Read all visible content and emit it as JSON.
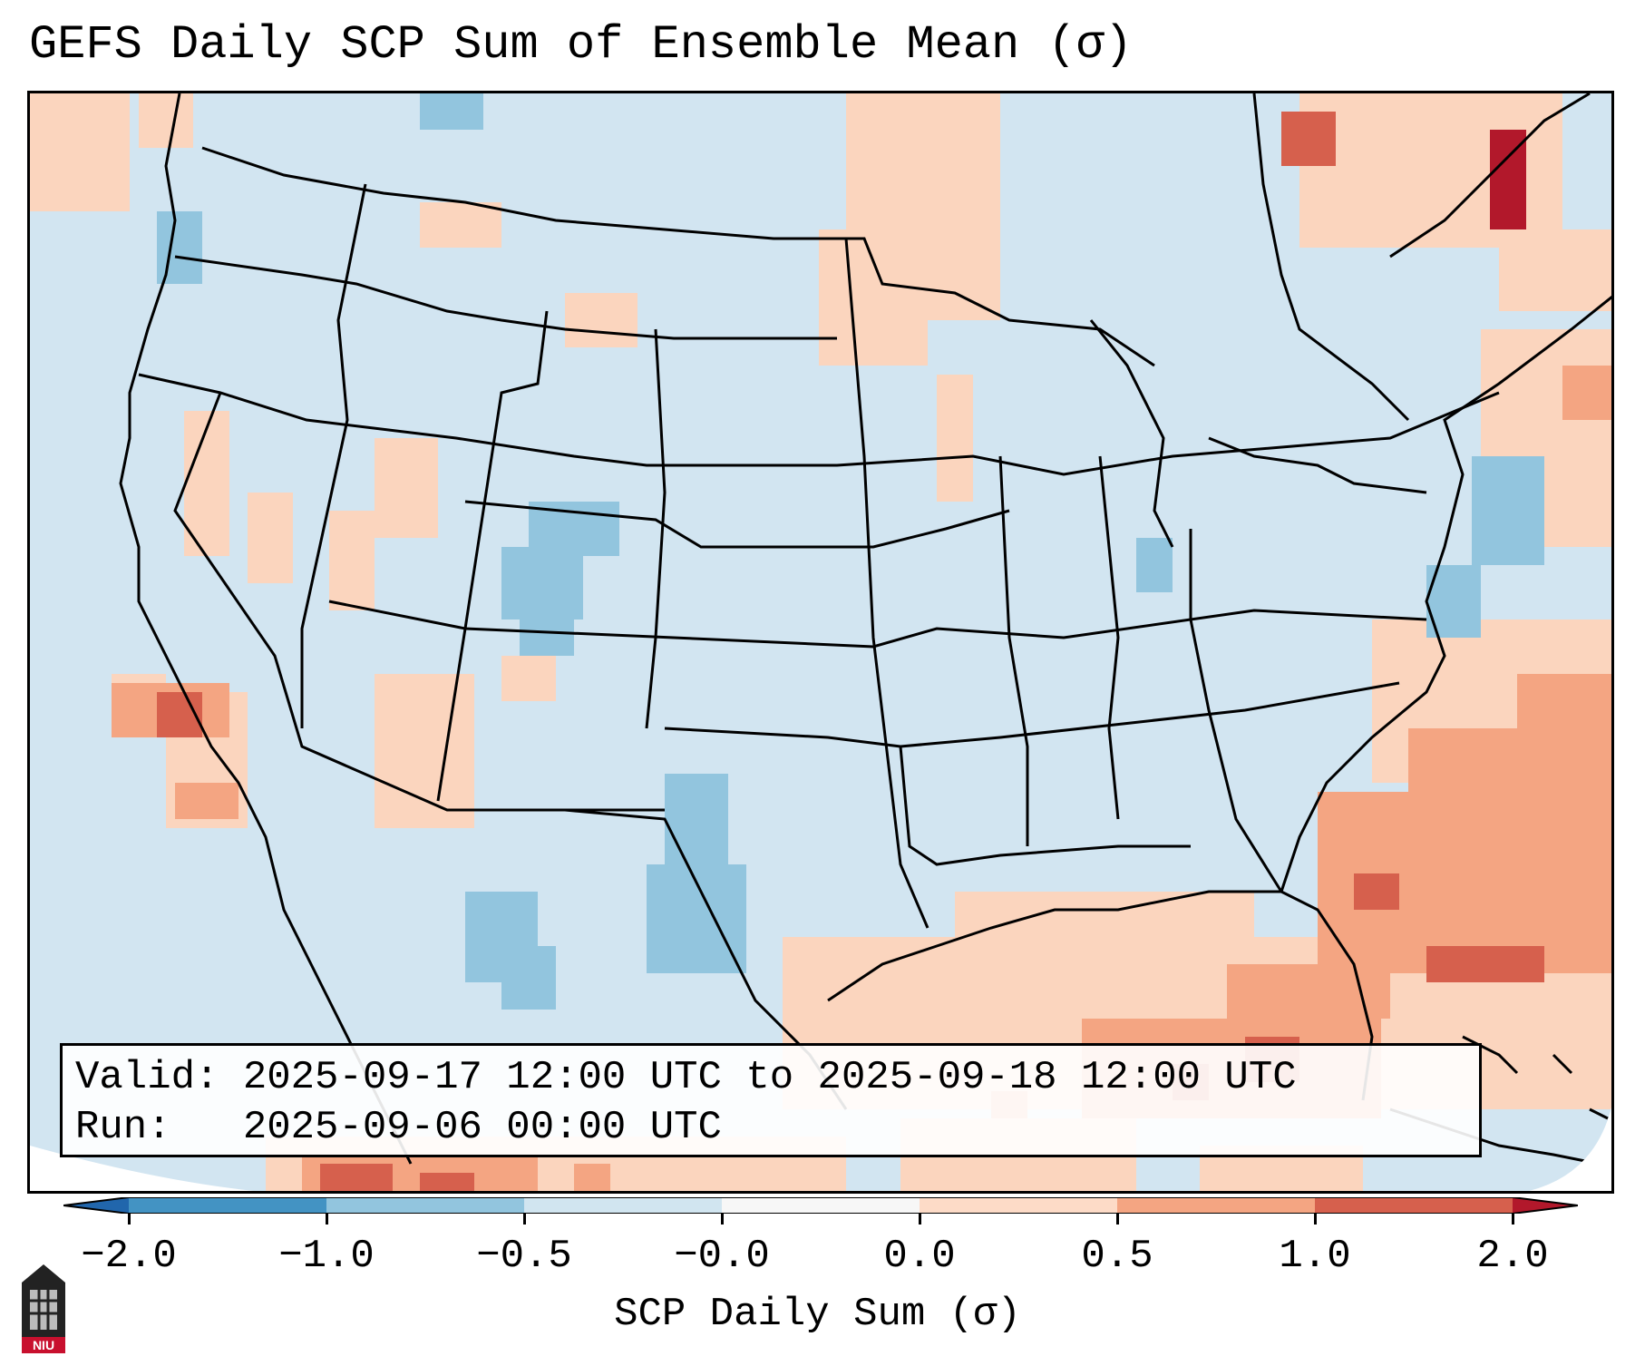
{
  "title": "GEFS Daily SCP Sum of Ensemble Mean (σ)",
  "info": {
    "valid_label": "Valid:",
    "valid_value": "2025-09-17 12:00 UTC to 2025-09-18 12:00 UTC",
    "run_label": "Run:",
    "run_value": "2025-09-06 00:00 UTC"
  },
  "colorbar": {
    "label": "SCP Daily Sum (σ)",
    "ticks": [
      "−2.0",
      "−1.0",
      "−0.5",
      "−0.0",
      "0.0",
      "0.5",
      "1.0",
      "2.0"
    ],
    "bins": [
      {
        "range": "<-2.0",
        "color": "#2166ac"
      },
      {
        "range": "-2.0 to -1.0",
        "color": "#4393c3"
      },
      {
        "range": "-1.0 to -0.5",
        "color": "#92c5de"
      },
      {
        "range": "-0.5 to -0.0",
        "color": "#d1e5f0"
      },
      {
        "range": "-0.0 to 0.0",
        "color": "#f7f7f7"
      },
      {
        "range": "0.0 to 0.5",
        "color": "#fddbc7"
      },
      {
        "range": "0.5 to 1.0",
        "color": "#f4a582"
      },
      {
        "range": "1.0 to 2.0",
        "color": "#d6604d"
      },
      {
        "range": ">2.0",
        "color": "#b2182b"
      }
    ]
  },
  "logo": {
    "text": "NIU",
    "icon": "niu-logo-icon"
  }
}
